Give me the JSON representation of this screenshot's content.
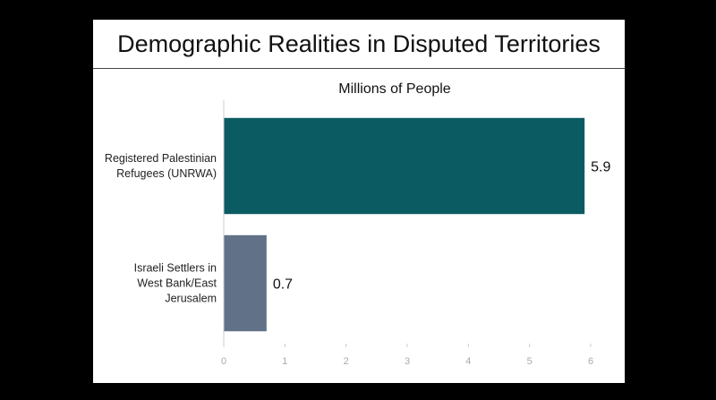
{
  "chart_data": {
    "type": "bar",
    "orientation": "horizontal",
    "title": "Demographic Realities in Disputed Territories",
    "xlabel": "Millions of People",
    "ylabel": "",
    "categories": [
      [
        "Registered Palestinian",
        "Refugees (UNRWA)"
      ],
      [
        "Israeli Settlers in",
        "West Bank/East",
        "Jerusalem"
      ]
    ],
    "values": [
      5.9,
      0.7
    ],
    "value_labels": [
      "5.9",
      "0.7"
    ],
    "colors": [
      "#0b5b62",
      "#617187"
    ],
    "xlim": [
      0,
      6
    ],
    "xticks": [
      0,
      1,
      2,
      3,
      4,
      5,
      6
    ],
    "grid": false,
    "axis_label_position": "top"
  }
}
